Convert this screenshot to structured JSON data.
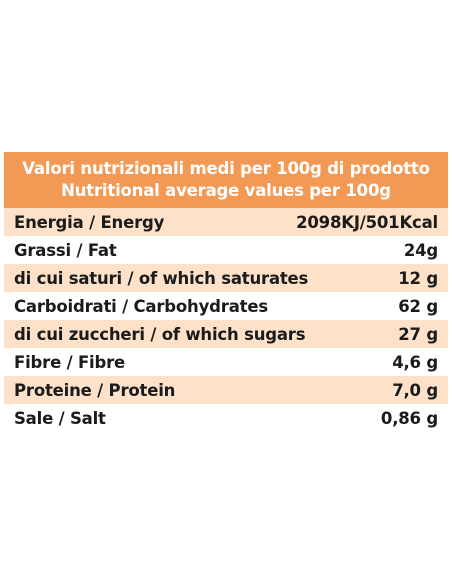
{
  "header": {
    "line1": "Valori nutrizionali medi per 100g di prodotto",
    "line2": "Nutritional average values per 100g"
  },
  "rows": [
    {
      "label": "Energia / Energy",
      "value": "2098KJ/501Kcal"
    },
    {
      "label": "Grassi / Fat",
      "value": "24g"
    },
    {
      "label": "di cui saturi / of which saturates",
      "value": "12 g"
    },
    {
      "label": "Carboidrati / Carbohydrates",
      "value": "62 g"
    },
    {
      "label": "di cui zuccheri / of which sugars",
      "value": "27 g"
    },
    {
      "label": "Fibre / Fibre",
      "value": "4,6 g"
    },
    {
      "label": "Proteine / Protein",
      "value": "7,0 g"
    },
    {
      "label": "Sale / Salt",
      "value": "0,86 g"
    }
  ],
  "colors": {
    "header_bg": "#f29a55",
    "row_alt_bg": "#fde1c8",
    "text": "#1b1b1b"
  }
}
